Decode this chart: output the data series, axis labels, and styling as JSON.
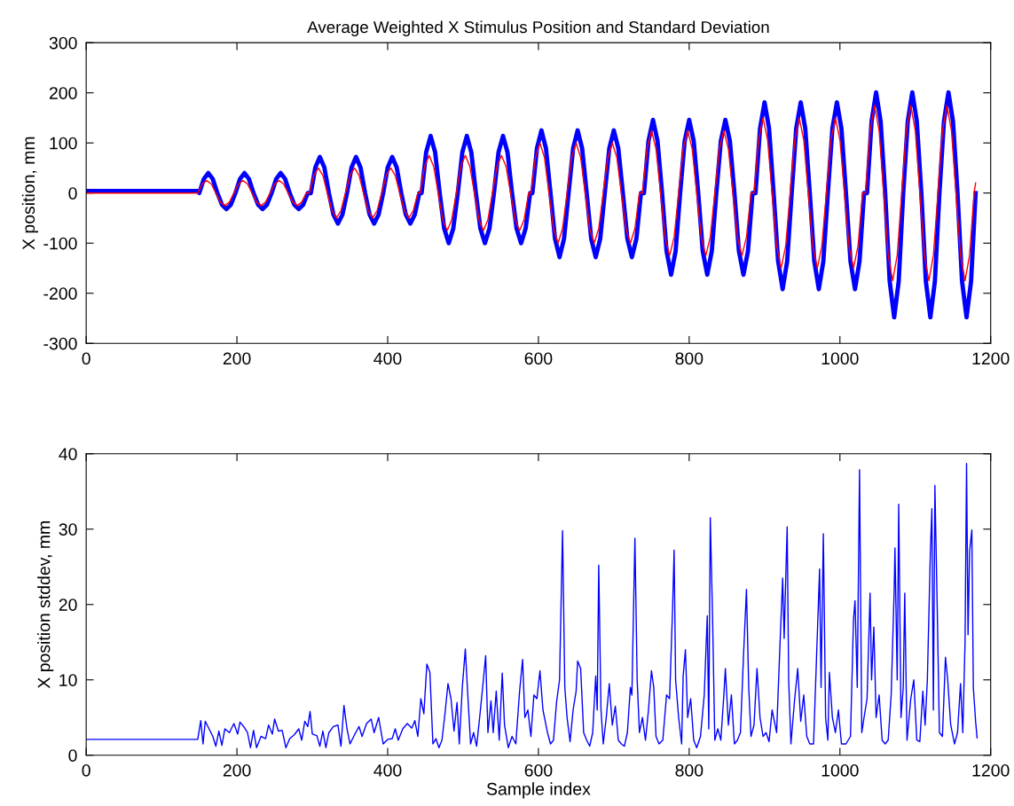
{
  "chart_data": [
    {
      "type": "line",
      "title": "Average Weighted X Stimulus Position and Standard Deviation",
      "ylabel": "X position, mm",
      "xlim": [
        0,
        1200
      ],
      "xticks": [
        0,
        200,
        400,
        600,
        800,
        1000,
        1200
      ],
      "ylim": [
        -300,
        300
      ],
      "yticks": [
        -300,
        -200,
        -100,
        0,
        100,
        200,
        300
      ],
      "grid": false,
      "series": [
        {
          "color": "#0000ff",
          "x": [
            0,
            150,
            150,
            156,
            162,
            168,
            174,
            180,
            186,
            192,
            198,
            204,
            210,
            216,
            222,
            228,
            234,
            240,
            246,
            252,
            258,
            264,
            270,
            276,
            282,
            288,
            294,
            298,
            304,
            310,
            316,
            322,
            328,
            334,
            340,
            346,
            352,
            358,
            364,
            370,
            376,
            382,
            388,
            394,
            400,
            406,
            412,
            418,
            424,
            430,
            436,
            442,
            445,
            451,
            457,
            463,
            469,
            475,
            481,
            487,
            493,
            499,
            505,
            511,
            517,
            523,
            529,
            535,
            541,
            547,
            553,
            559,
            565,
            571,
            577,
            583,
            589,
            592,
            598,
            604,
            610,
            616,
            622,
            628,
            634,
            640,
            646,
            652,
            658,
            664,
            670,
            676,
            682,
            688,
            694,
            700,
            706,
            712,
            718,
            724,
            730,
            736,
            740,
            746,
            752,
            758,
            764,
            770,
            776,
            782,
            788,
            794,
            800,
            806,
            812,
            818,
            824,
            830,
            836,
            842,
            848,
            854,
            860,
            866,
            872,
            878,
            884,
            888,
            894,
            900,
            906,
            912,
            918,
            924,
            930,
            936,
            942,
            948,
            954,
            960,
            966,
            972,
            978,
            984,
            990,
            996,
            1002,
            1008,
            1014,
            1020,
            1026,
            1032,
            1036,
            1042,
            1048,
            1054,
            1060,
            1066,
            1072,
            1078,
            1084,
            1090,
            1096,
            1102,
            1108,
            1114,
            1120,
            1126,
            1132,
            1138,
            1144,
            1150,
            1156,
            1162,
            1168,
            1174,
            1180
          ],
          "values": [
            4,
            4,
            0,
            28,
            40,
            28,
            0,
            -23,
            -32,
            -23,
            0,
            28,
            40,
            28,
            0,
            -23,
            -32,
            -23,
            0,
            28,
            40,
            28,
            0,
            -23,
            -32,
            -23,
            0,
            0,
            51,
            72,
            51,
            0,
            -43,
            -61,
            -43,
            0,
            51,
            72,
            51,
            0,
            -43,
            -61,
            -43,
            0,
            51,
            72,
            51,
            0,
            -43,
            -61,
            -43,
            0,
            0,
            81,
            114,
            81,
            0,
            -71,
            -100,
            -71,
            0,
            81,
            114,
            81,
            0,
            -71,
            -100,
            -71,
            0,
            81,
            114,
            81,
            0,
            -71,
            -100,
            -71,
            0,
            0,
            89,
            125,
            89,
            0,
            -91,
            -128,
            -91,
            0,
            89,
            125,
            89,
            0,
            -91,
            -128,
            -91,
            0,
            89,
            125,
            89,
            0,
            -91,
            -128,
            -91,
            0,
            0,
            104,
            146,
            104,
            0,
            -116,
            -163,
            -116,
            0,
            104,
            146,
            104,
            0,
            -116,
            -163,
            -116,
            0,
            104,
            146,
            104,
            0,
            -116,
            -163,
            -116,
            0,
            0,
            129,
            181,
            129,
            0,
            -136,
            -192,
            -136,
            0,
            129,
            181,
            129,
            0,
            -136,
            -192,
            -136,
            0,
            129,
            181,
            129,
            0,
            -136,
            -192,
            -136,
            0,
            0,
            143,
            201,
            143,
            0,
            -176,
            -248,
            -176,
            0,
            143,
            201,
            143,
            0,
            -176,
            -248,
            -176,
            0,
            143,
            201,
            143,
            0,
            -176,
            -248,
            -176,
            0
          ]
        },
        {
          "color": "#ff0000",
          "x": [
            0,
            148,
            154,
            160,
            166,
            172,
            178,
            184,
            190,
            196,
            202,
            208,
            214,
            220,
            226,
            232,
            238,
            244,
            250,
            256,
            262,
            268,
            274,
            280,
            286,
            292,
            296,
            302,
            308,
            314,
            320,
            326,
            332,
            338,
            344,
            350,
            356,
            362,
            368,
            374,
            380,
            386,
            392,
            398,
            404,
            410,
            416,
            422,
            428,
            434,
            440,
            443,
            449,
            455,
            461,
            467,
            473,
            479,
            485,
            491,
            497,
            503,
            509,
            515,
            521,
            527,
            533,
            539,
            545,
            551,
            557,
            563,
            569,
            575,
            581,
            587,
            590,
            596,
            602,
            608,
            614,
            620,
            626,
            632,
            638,
            644,
            650,
            656,
            662,
            668,
            674,
            680,
            686,
            692,
            698,
            704,
            710,
            716,
            722,
            728,
            734,
            738,
            744,
            750,
            756,
            762,
            768,
            774,
            780,
            786,
            792,
            798,
            804,
            810,
            816,
            822,
            828,
            834,
            840,
            846,
            852,
            858,
            864,
            870,
            876,
            882,
            886,
            892,
            898,
            904,
            910,
            916,
            922,
            928,
            934,
            940,
            946,
            952,
            958,
            964,
            970,
            976,
            982,
            988,
            994,
            1000,
            1006,
            1012,
            1018,
            1024,
            1030,
            1034,
            1040,
            1046,
            1052,
            1058,
            1064,
            1070,
            1076,
            1082,
            1088,
            1094,
            1100,
            1106,
            1112,
            1118,
            1124,
            1130,
            1136,
            1142,
            1148,
            1154,
            1160,
            1166,
            1172,
            1178,
            1180
          ],
          "values": [
            0,
            0,
            18,
            25,
            18,
            0,
            -18,
            -25,
            -18,
            0,
            18,
            25,
            18,
            0,
            -18,
            -25,
            -18,
            0,
            18,
            25,
            18,
            0,
            -18,
            -25,
            -18,
            0,
            0,
            35,
            50,
            35,
            0,
            -35,
            -50,
            -35,
            0,
            35,
            50,
            35,
            0,
            -35,
            -50,
            -35,
            0,
            35,
            50,
            35,
            0,
            -35,
            -50,
            -35,
            0,
            0,
            53,
            75,
            53,
            0,
            -53,
            -75,
            -53,
            0,
            53,
            75,
            53,
            0,
            -53,
            -75,
            -53,
            0,
            53,
            75,
            53,
            0,
            -53,
            -75,
            -53,
            0,
            0,
            71,
            100,
            71,
            0,
            -71,
            -100,
            -71,
            0,
            71,
            100,
            71,
            0,
            -71,
            -100,
            -71,
            0,
            71,
            100,
            71,
            0,
            -71,
            -100,
            -71,
            0,
            0,
            88,
            125,
            88,
            0,
            -88,
            -125,
            -88,
            0,
            88,
            125,
            88,
            0,
            -88,
            -125,
            -88,
            0,
            88,
            125,
            88,
            0,
            -88,
            -125,
            -88,
            0,
            0,
            106,
            150,
            106,
            0,
            -106,
            -150,
            -106,
            0,
            106,
            150,
            106,
            0,
            -106,
            -150,
            -106,
            0,
            106,
            150,
            106,
            0,
            -106,
            -150,
            -106,
            0,
            0,
            124,
            175,
            124,
            0,
            -124,
            -175,
            -124,
            0,
            124,
            175,
            124,
            0,
            -124,
            -175,
            -124,
            0,
            124,
            175,
            124,
            0,
            -124,
            -175,
            -124,
            0,
            20
          ]
        }
      ]
    },
    {
      "type": "line",
      "xlabel": "Sample index",
      "ylabel": "X position stddev, mm",
      "xlim": [
        0,
        1200
      ],
      "xticks": [
        0,
        200,
        400,
        600,
        800,
        1000,
        1200
      ],
      "ylim": [
        0,
        40
      ],
      "yticks": [
        0,
        10,
        20,
        30,
        40
      ],
      "grid": false,
      "series": [
        {
          "color": "#0000ff",
          "x": [
            0,
            148,
            152,
            155,
            158,
            163,
            168,
            172,
            176,
            180,
            184,
            190,
            196,
            201,
            204,
            209,
            214,
            218,
            222,
            226,
            232,
            238,
            242,
            247,
            250,
            255,
            260,
            265,
            270,
            276,
            282,
            286,
            290,
            294,
            297,
            300,
            306,
            310,
            314,
            318,
            322,
            328,
            334,
            338,
            342,
            346,
            350,
            356,
            362,
            366,
            372,
            378,
            382,
            388,
            394,
            400,
            406,
            410,
            414,
            420,
            426,
            432,
            436,
            440,
            444,
            448,
            452,
            456,
            460,
            464,
            468,
            472,
            476,
            480,
            484,
            488,
            492,
            495,
            499,
            503,
            506,
            510,
            514,
            518,
            522,
            526,
            530,
            533,
            537,
            540,
            544,
            548,
            552,
            555,
            560,
            565,
            570,
            575,
            579,
            582,
            586,
            590,
            594,
            598,
            602,
            606,
            612,
            616,
            620,
            624,
            628,
            632,
            635,
            638,
            642,
            646,
            650,
            652,
            656,
            660,
            664,
            668,
            672,
            676,
            678,
            680,
            683,
            686,
            690,
            694,
            698,
            702,
            706,
            710,
            714,
            718,
            722,
            724,
            728,
            731,
            734,
            738,
            742,
            746,
            750,
            753,
            756,
            760,
            765,
            770,
            774,
            778,
            780,
            782,
            786,
            790,
            792,
            795,
            798,
            802,
            806,
            810,
            815,
            820,
            824,
            826,
            828,
            831,
            834,
            838,
            842,
            846,
            848,
            852,
            856,
            860,
            864,
            868,
            872,
            876,
            879,
            882,
            886,
            890,
            894,
            898,
            902,
            906,
            910,
            916,
            920,
            924,
            926,
            928,
            930,
            932,
            935,
            940,
            944,
            948,
            952,
            956,
            960,
            965,
            970,
            973,
            975,
            978,
            981,
            984,
            986,
            990,
            994,
            998,
            1002,
            1008,
            1014,
            1018,
            1020,
            1023,
            1026,
            1029,
            1032,
            1036,
            1040,
            1042,
            1045,
            1048,
            1052,
            1056,
            1060,
            1064,
            1068,
            1072,
            1073,
            1076,
            1078,
            1081,
            1084,
            1086,
            1089,
            1094,
            1098,
            1102,
            1106,
            1110,
            1113,
            1116,
            1120,
            1122,
            1124,
            1126,
            1129,
            1132,
            1136,
            1140,
            1143,
            1147,
            1152,
            1156,
            1160,
            1163,
            1166,
            1168,
            1170,
            1172,
            1175,
            1177,
            1180,
            1182
          ],
          "values": [
            2.1,
            2.1,
            4.6,
            1.5,
            4.5,
            3.5,
            2.5,
            1.2,
            3.2,
            1.3,
            3.5,
            3.0,
            4.2,
            2.8,
            4.4,
            3.8,
            3.0,
            1.0,
            3.3,
            1.0,
            2.5,
            2.2,
            4.0,
            2.8,
            4.8,
            3.2,
            3.3,
            1.0,
            2.2,
            2.7,
            3.5,
            2.0,
            4.5,
            3.8,
            5.8,
            2.8,
            2.6,
            1.2,
            3.2,
            1.0,
            3.0,
            3.8,
            4.0,
            1.2,
            6.6,
            3.5,
            1.5,
            2.7,
            3.8,
            2.5,
            4.2,
            4.8,
            3.0,
            5.0,
            1.5,
            2.1,
            2.2,
            3.5,
            2.0,
            3.5,
            4.2,
            3.6,
            4.6,
            2.5,
            7.5,
            5.5,
            12.1,
            11.0,
            1.5,
            2.2,
            1.0,
            2.0,
            5.5,
            9.5,
            7.5,
            3.2,
            7.0,
            1.5,
            9.0,
            14.1,
            8.5,
            1.5,
            3.0,
            1.2,
            5.0,
            9.0,
            13.2,
            3.0,
            7.2,
            3.0,
            8.5,
            2.0,
            10.9,
            4.0,
            1.0,
            2.5,
            1.5,
            8.5,
            12.7,
            5.0,
            6.0,
            2.5,
            8.0,
            7.5,
            11.2,
            6.0,
            3.0,
            1.5,
            2.0,
            7.0,
            10.0,
            29.8,
            9.0,
            5.0,
            1.8,
            6.0,
            8.5,
            12.5,
            11.5,
            3.0,
            2.0,
            1.2,
            3.0,
            10.5,
            6.0,
            25.2,
            6.0,
            1.5,
            5.0,
            9.5,
            4.0,
            6.5,
            2.0,
            1.5,
            1.2,
            3.0,
            9.0,
            8.0,
            28.8,
            10.0,
            3.0,
            5.0,
            2.0,
            6.0,
            11.2,
            9.0,
            2.5,
            1.5,
            2.0,
            8.0,
            7.5,
            19.5,
            27.2,
            10.0,
            5.0,
            1.5,
            10.5,
            14.0,
            5.0,
            7.5,
            2.0,
            1.0,
            2.5,
            8.0,
            18.5,
            3.5,
            31.5,
            18.5,
            2.0,
            3.5,
            2.0,
            8.0,
            11.5,
            4.0,
            8.0,
            1.5,
            2.0,
            3.0,
            13.0,
            22.0,
            9.0,
            2.5,
            4.0,
            11.5,
            5.0,
            2.5,
            3.0,
            1.8,
            6.0,
            3.0,
            13.5,
            23.5,
            15.5,
            23.0,
            30.3,
            10.0,
            1.5,
            7.5,
            11.5,
            4.5,
            8.0,
            2.5,
            1.5,
            1.5,
            16.0,
            24.7,
            9.0,
            29.4,
            5.0,
            2.0,
            11.0,
            5.0,
            3.0,
            6.0,
            1.5,
            1.5,
            2.5,
            18.0,
            20.5,
            9.0,
            37.9,
            3.0,
            5.0,
            7.5,
            21.5,
            10.0,
            17.0,
            5.0,
            8.0,
            2.0,
            1.5,
            2.0,
            8.0,
            22.0,
            27.5,
            10.0,
            33.3,
            5.0,
            9.0,
            21.5,
            2.0,
            7.5,
            10.0,
            2.0,
            1.8,
            8.5,
            4.0,
            10.0,
            27.0,
            32.7,
            6.0,
            35.8,
            20.0,
            3.0,
            2.5,
            13.0,
            10.0,
            4.0,
            1.5,
            3.0,
            9.5,
            3.0,
            15.0,
            38.7,
            16.0,
            27.0,
            29.9,
            9.0,
            4.5,
            2.3
          ]
        }
      ]
    }
  ]
}
